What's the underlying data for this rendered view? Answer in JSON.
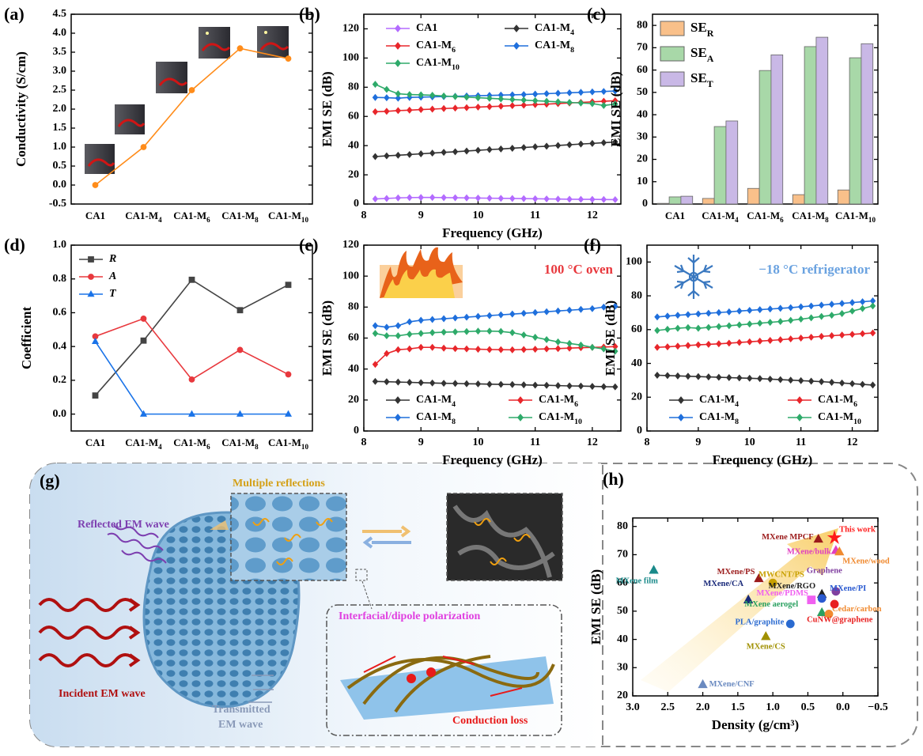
{
  "chart_data": [
    {
      "type": "line",
      "panel_label": "(a)",
      "ylabel": "Conductivity (S/cm)",
      "categories": [
        "CA1",
        "CA1-M_4",
        "CA1-M_6",
        "CA1-M_8",
        "CA1-M_10"
      ],
      "values": [
        0,
        1.0,
        2.5,
        3.6,
        3.33
      ],
      "color": "#ff8c1a",
      "marker": "circle",
      "ylim": [
        -0.5,
        4.5
      ],
      "yticks": [
        -0.5,
        {
          "value": 0,
          "label": "0.0"
        },
        0.5,
        {
          "value": 1,
          "label": "1.0"
        },
        1.5,
        {
          "value": 2,
          "label": "2.0"
        },
        2.5,
        {
          "value": 3,
          "label": "3.0"
        },
        3.5,
        {
          "value": 4,
          "label": "4.0"
        },
        4.5
      ]
    },
    {
      "type": "line",
      "panel_label": "(b)",
      "xlabel": "Frequency (GHz)",
      "ylabel": "EMI SE (dB)",
      "x": [
        8.2,
        8.4,
        8.6,
        8.8,
        9.0,
        9.2,
        9.4,
        9.6,
        9.8,
        10.0,
        10.2,
        10.4,
        10.6,
        10.8,
        11.0,
        11.2,
        11.4,
        11.6,
        11.8,
        12.0,
        12.2,
        12.4
      ],
      "series": [
        {
          "name": "CA1",
          "color": "#b36bff",
          "marker": "diamond",
          "values": [
            3.5,
            3.8,
            4.2,
            4.4,
            4.5,
            4.5,
            4.4,
            4.3,
            4.2,
            4.1,
            4.0,
            3.9,
            3.8,
            3.7,
            3.6,
            3.5,
            3.4,
            3.3,
            3.2,
            3.2,
            3.1,
            3.0
          ]
        },
        {
          "name": "CA1-M_4",
          "color": "#333333",
          "marker": "diamond",
          "values": [
            32.5,
            33.0,
            33.4,
            33.9,
            34.4,
            34.9,
            35.4,
            35.8,
            36.3,
            36.8,
            37.3,
            37.7,
            38.2,
            38.7,
            39.2,
            39.6,
            40.1,
            40.6,
            41.1,
            41.5,
            42.0,
            42.5
          ]
        },
        {
          "name": "CA1-M_6",
          "color": "#e8262b",
          "marker": "diamond",
          "values": [
            63.2,
            63.5,
            64.0,
            64.3,
            64.7,
            65.0,
            65.4,
            65.7,
            66.0,
            66.4,
            66.7,
            67.0,
            67.4,
            67.7,
            68.1,
            68.4,
            68.8,
            69.2,
            69.6,
            70.0,
            70.4,
            70.8
          ]
        },
        {
          "name": "CA1-M_8",
          "color": "#1f6fdc",
          "marker": "diamond",
          "values": [
            73.0,
            72.8,
            72.5,
            73.0,
            73.2,
            73.4,
            73.6,
            73.8,
            74.0,
            74.2,
            74.4,
            74.6,
            74.8,
            75.0,
            75.3,
            75.6,
            75.9,
            76.2,
            76.5,
            76.8,
            77.1,
            77.4
          ]
        },
        {
          "name": "CA1-M_10",
          "color": "#2eaa6a",
          "marker": "diamond",
          "values": [
            82.0,
            78.5,
            75.5,
            75.0,
            74.8,
            74.5,
            74.0,
            73.6,
            73.2,
            72.8,
            72.4,
            72.0,
            71.6,
            71.2,
            70.8,
            70.4,
            70.0,
            69.6,
            69.2,
            68.8,
            67.5,
            68.5
          ]
        }
      ],
      "legend": "upper center",
      "legend_columns": 2,
      "xlim": [
        8,
        12.5
      ],
      "xticks": [
        8,
        9,
        10,
        11,
        12
      ],
      "ylim": [
        0,
        130
      ],
      "yticks": [
        0,
        20,
        40,
        60,
        80,
        100,
        120
      ]
    },
    {
      "type": "bar",
      "panel_label": "(c)",
      "ylabel": "EMI SE (dB)",
      "categories": [
        "CA1",
        "CA1-M_4",
        "CA1-M_6",
        "CA1-M_8",
        "CA1-M_10"
      ],
      "series": [
        {
          "name": "SE_R",
          "color": "#f9c08a",
          "values": [
            0.3,
            2.5,
            7.0,
            4.2,
            6.3
          ]
        },
        {
          "name": "SE_A",
          "color": "#a8d8a8",
          "values": [
            3.2,
            34.7,
            59.8,
            70.5,
            65.5
          ]
        },
        {
          "name": "SE_T",
          "color": "#c9b8e6",
          "values": [
            3.5,
            37.2,
            66.8,
            74.7,
            71.8
          ]
        }
      ],
      "legend": "upper left",
      "legend_columns": 1,
      "ylim": [
        0,
        85
      ],
      "yticks": [
        0,
        10,
        20,
        30,
        40,
        50,
        60,
        70,
        80
      ]
    },
    {
      "type": "line",
      "panel_label": "(d)",
      "ylabel": "Coefficient",
      "categories": [
        "CA1",
        "CA1-M_4",
        "CA1-M_6",
        "CA1-M_8",
        "CA1-M_10"
      ],
      "series": [
        {
          "name": "R",
          "color": "#444444",
          "marker": "square",
          "values": [
            0.11,
            0.435,
            0.795,
            0.615,
            0.765
          ]
        },
        {
          "name": "A",
          "color": "#e8383d",
          "marker": "circle",
          "values": [
            0.46,
            0.565,
            0.205,
            0.38,
            0.235
          ]
        },
        {
          "name": "T",
          "color": "#1a73e8",
          "marker": "triangle",
          "values": [
            0.43,
            0,
            0,
            0,
            0
          ]
        }
      ],
      "legend": "upper left",
      "legend_columns": 1,
      "legend_style": "italic",
      "ylim": [
        -0.1,
        1.0
      ],
      "yticks": [
        {
          "value": 0,
          "label": "0.0"
        },
        0.2,
        0.4,
        0.6,
        0.8,
        {
          "value": 1,
          "label": "1.0"
        }
      ]
    },
    {
      "type": "line",
      "panel_label": "(e)",
      "xlabel": "Frequency (GHz)",
      "ylabel": "EMI SE (dB)",
      "annotation": "100 °C oven",
      "annotation_color": "#e8383d",
      "x": [
        8.2,
        8.4,
        8.6,
        8.8,
        9.0,
        9.2,
        9.4,
        9.6,
        9.8,
        10.0,
        10.2,
        10.4,
        10.6,
        10.8,
        11.0,
        11.2,
        11.4,
        11.6,
        11.8,
        12.0,
        12.2,
        12.4
      ],
      "series": [
        {
          "name": "CA1-M_4",
          "color": "#333333",
          "marker": "diamond",
          "values": [
            32.0,
            31.8,
            31.6,
            31.4,
            31.2,
            31.0,
            30.8,
            30.7,
            30.5,
            30.4,
            30.2,
            30.1,
            30.0,
            29.8,
            29.6,
            29.5,
            29.3,
            29.1,
            29.0,
            28.8,
            28.6,
            28.5
          ]
        },
        {
          "name": "CA1-M_6",
          "color": "#e8262b",
          "marker": "diamond",
          "values": [
            43,
            50,
            52.5,
            53,
            54,
            54,
            53.5,
            53.2,
            53,
            52.8,
            52.6,
            52.5,
            52.4,
            52.6,
            52.8,
            53,
            53.2,
            53.5,
            53.8,
            54,
            54.2,
            54.5
          ]
        },
        {
          "name": "CA1-M_8",
          "color": "#1f6fdc",
          "marker": "diamond",
          "values": [
            68,
            67,
            68,
            70.5,
            71.5,
            72,
            72.5,
            73,
            73.5,
            74,
            74.5,
            75,
            75.5,
            76,
            76.5,
            77,
            77.5,
            78,
            78.5,
            79,
            80,
            80.5
          ]
        },
        {
          "name": "CA1-M_10",
          "color": "#2eaa6a",
          "marker": "diamond",
          "values": [
            63,
            61.5,
            61.5,
            62.5,
            63,
            63.5,
            63.8,
            64,
            64.2,
            64.5,
            64.5,
            64.3,
            63.5,
            62,
            60.5,
            59,
            57.5,
            56.5,
            55.5,
            54,
            53,
            51.5
          ]
        }
      ],
      "legend": "lower center",
      "legend_columns": 2,
      "xlim": [
        8,
        12.5
      ],
      "xticks": [
        8,
        9,
        10,
        11,
        12
      ],
      "ylim": [
        0,
        120
      ],
      "yticks": [
        0,
        20,
        40,
        60,
        80,
        100,
        120
      ]
    },
    {
      "type": "line",
      "panel_label": "(f)",
      "xlabel": "Frequency (GHz)",
      "ylabel": "EMI SE (dB)",
      "annotation": "−18 °C refrigerator",
      "annotation_color": "#6aa2e0",
      "x": [
        8.2,
        8.4,
        8.6,
        8.8,
        9.0,
        9.2,
        9.4,
        9.6,
        9.8,
        10.0,
        10.2,
        10.4,
        10.6,
        10.8,
        11.0,
        11.2,
        11.4,
        11.6,
        11.8,
        12.0,
        12.2,
        12.4
      ],
      "series": [
        {
          "name": "CA1-M_4",
          "color": "#333333",
          "marker": "diamond",
          "values": [
            33,
            32.8,
            32.6,
            32.4,
            32.2,
            32,
            31.8,
            31.6,
            31.4,
            31.2,
            31,
            30.7,
            30.4,
            30.1,
            29.8,
            29.5,
            29.2,
            28.8,
            28.4,
            28,
            27.6,
            27.2
          ]
        },
        {
          "name": "CA1-M_6",
          "color": "#e8262b",
          "marker": "diamond",
          "values": [
            49.5,
            49.8,
            50.2,
            50.6,
            51,
            51.3,
            51.6,
            52,
            52.4,
            52.8,
            53.2,
            53.6,
            54,
            54.5,
            55,
            55.5,
            56,
            56.4,
            56.8,
            57.2,
            57.6,
            58
          ]
        },
        {
          "name": "CA1-M_8",
          "color": "#1f6fdc",
          "marker": "diamond",
          "values": [
            67.5,
            68,
            68.5,
            68.9,
            69.3,
            69.7,
            70.1,
            70.5,
            71,
            71.4,
            71.8,
            72.2,
            72.6,
            73,
            73.5,
            74,
            74.5,
            75,
            75.5,
            76,
            76.5,
            77
          ]
        },
        {
          "name": "CA1-M_10",
          "color": "#2eaa6a",
          "marker": "diamond",
          "values": [
            59.5,
            60.2,
            60.8,
            61.2,
            60.8,
            61.3,
            61.8,
            62.3,
            62.8,
            63.3,
            63.8,
            64.3,
            64.8,
            65.5,
            66.2,
            67,
            67.8,
            68.5,
            69.5,
            71,
            72.5,
            74
          ]
        }
      ],
      "legend": "lower center",
      "legend_columns": 2,
      "xlim": [
        8,
        12.5
      ],
      "xticks": [
        8,
        9,
        10,
        11,
        12
      ],
      "ylim": [
        0,
        110
      ],
      "yticks": [
        0,
        20,
        40,
        60,
        80,
        100
      ]
    },
    {
      "type": "scatter",
      "panel_label": "(h)",
      "xlabel": "Density (g/cm³)",
      "ylabel": "EMI SE (dB)",
      "labels": [
        "This work",
        "MXene MPCF",
        "MXene/bulk",
        "MXene/wood",
        "MXene film",
        "MXene/PS",
        "MWCNT/PS",
        "Graphene",
        "MXene/RGO",
        "MXene/CA",
        "MXene/PDMS",
        "MXene/PI",
        "MXene aerogel",
        "Cedar/carbon",
        "CuNW@graphene",
        "PLA/graphite",
        "MXene/CS",
        "MXene/CNF"
      ],
      "x": [
        0.12,
        0.35,
        0.1,
        0.05,
        2.7,
        1.2,
        1.0,
        0.1,
        0.3,
        1.35,
        0.45,
        0.3,
        0.3,
        0.2,
        0.12,
        0.75,
        1.1,
        2.0
      ],
      "values": [
        76,
        75.5,
        71.5,
        71,
        64.5,
        61.5,
        60,
        57,
        56,
        54,
        54,
        54.5,
        49.5,
        49,
        52.5,
        45.5,
        41,
        24
      ],
      "colors": [
        "#ff1a1a",
        "#9b1b1b",
        "#e040c0",
        "#f08a30",
        "#1a8a8a",
        "#9b1b1b",
        "#c8a000",
        "#8040a0",
        "#222222",
        "#1a2a7a",
        "#f060f0",
        "#2a5ad0",
        "#2aa060",
        "#f08a30",
        "#e82020",
        "#2a6ad0",
        "#a09000",
        "#6a8ac0"
      ],
      "markers": [
        "star",
        "triangle",
        "triangle",
        "triangle",
        "triangle",
        "triangle",
        "circle",
        "circle",
        "triangle",
        "triangle",
        "square",
        "circle",
        "triangle",
        "circle",
        "circle",
        "circle",
        "triangle",
        "triangle"
      ],
      "xlim": [
        3.0,
        -0.5
      ],
      "xticks": [
        {
          "value": 3,
          "label": "3.0"
        },
        2.5,
        {
          "value": 2,
          "label": "2.0"
        },
        1.5,
        {
          "value": 1,
          "label": "1.0"
        },
        0.5,
        {
          "value": 0,
          "label": "0.0"
        },
        {
          "value": -0.5,
          "label": "−0.5"
        }
      ],
      "ylim": [
        20,
        83
      ],
      "yticks": [
        20,
        30,
        40,
        50,
        60,
        70,
        80
      ]
    }
  ],
  "diagram": {
    "panel_label": "(g)",
    "reflected": "Reflected EM wave",
    "multiple": "Multiple reflections",
    "polarization": "Interfacial/dipole polarization",
    "incident": "Incident EM wave",
    "transmitted": [
      "Transmitted",
      "EM wave"
    ],
    "conduction": "Conduction loss"
  }
}
